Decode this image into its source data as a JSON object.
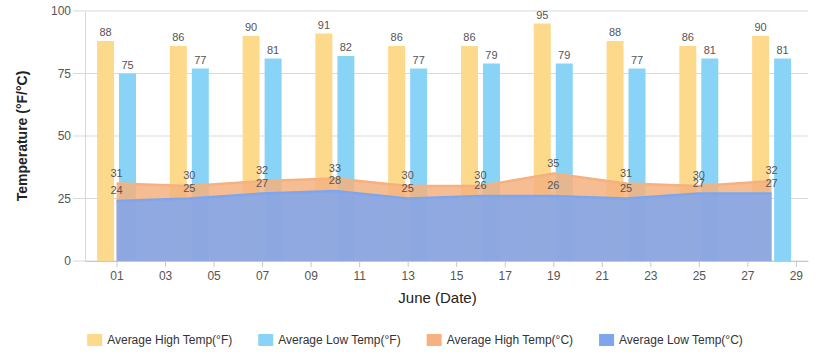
{
  "chart_data": {
    "type": "bar",
    "x_label": "June (Date)",
    "y_label": "Temperature (°F/°C)",
    "x": [
      1,
      4,
      7,
      10,
      13,
      16,
      19,
      22,
      25,
      28
    ],
    "xlim": [
      -0.3,
      29.5
    ],
    "xticks": [
      {
        "value": 1,
        "label": "01"
      },
      {
        "value": 3,
        "label": "03"
      },
      {
        "value": 5,
        "label": "05"
      },
      {
        "value": 7,
        "label": "07"
      },
      {
        "value": 9,
        "label": "09"
      },
      {
        "value": 11,
        "label": "11"
      },
      {
        "value": 13,
        "label": "13"
      },
      {
        "value": 15,
        "label": "15"
      },
      {
        "value": 17,
        "label": "17"
      },
      {
        "value": 19,
        "label": "19"
      },
      {
        "value": 21,
        "label": "21"
      },
      {
        "value": 23,
        "label": "23"
      },
      {
        "value": 25,
        "label": "25"
      },
      {
        "value": 27,
        "label": "27"
      },
      {
        "value": 29,
        "label": "29"
      }
    ],
    "ylim": [
      0,
      100
    ],
    "yticks": [
      0,
      25,
      50,
      75,
      100
    ],
    "grid": true,
    "data_labels": true,
    "legend": "bottom",
    "series": [
      {
        "name": "Average High Temp(°F)",
        "type": "bar",
        "color": "#fdd98b",
        "values": [
          88,
          86,
          90,
          91,
          86,
          86,
          95,
          88,
          86,
          90
        ]
      },
      {
        "name": "Average Low Temp(°F)",
        "type": "bar",
        "color": "#89d4f6",
        "values": [
          75,
          77,
          81,
          82,
          77,
          79,
          79,
          77,
          81,
          81
        ]
      },
      {
        "name": "Average High Temp(°C)",
        "type": "area",
        "color": "#f5b17f",
        "values": [
          31,
          30,
          32,
          33,
          30,
          30,
          35,
          31,
          30,
          32
        ]
      },
      {
        "name": "Average Low Temp(°C)",
        "type": "area",
        "color": "#7ea6ee",
        "values": [
          24,
          25,
          27,
          28,
          25,
          26,
          26,
          25,
          27,
          27
        ]
      }
    ]
  }
}
